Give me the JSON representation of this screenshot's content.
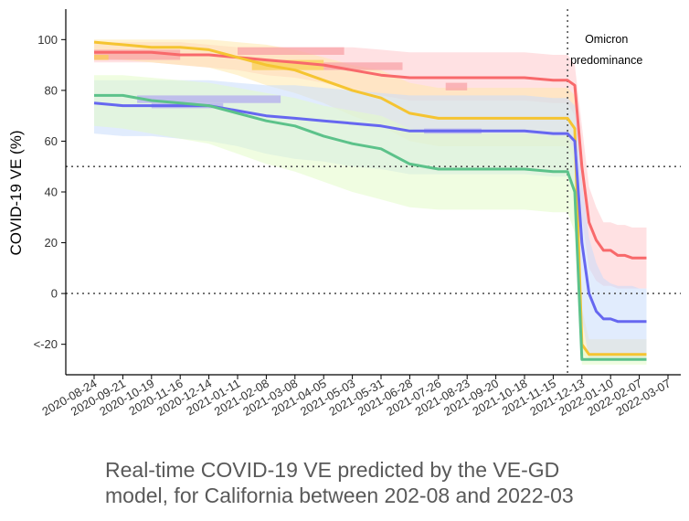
{
  "chart_data": {
    "type": "line",
    "ylabel": "COVID-19 VE (%)",
    "xlabel": "",
    "ylim": [
      -32,
      112
    ],
    "grid": false,
    "yticks": [
      {
        "value": 100,
        "label": "100"
      },
      {
        "value": 80,
        "label": "80"
      },
      {
        "value": 60,
        "label": "60"
      },
      {
        "value": 40,
        "label": "40"
      },
      {
        "value": 20,
        "label": "20"
      },
      {
        "value": 0,
        "label": "0"
      },
      {
        "value": -20,
        "label": "<-20"
      }
    ],
    "x_dates": [
      "2020-08-24",
      "2020-09-21",
      "2020-10-19",
      "2020-11-16",
      "2020-12-14",
      "2021-01-11",
      "2021-02-08",
      "2021-03-08",
      "2021-04-05",
      "2021-05-03",
      "2021-05-31",
      "2021-06-28",
      "2021-07-26",
      "2021-08-23",
      "2021-09-20",
      "2021-10-18",
      "2021-11-15",
      "2021-12-13",
      "2022-01-10",
      "2022-02-07",
      "2022-03-07"
    ],
    "reference_lines": [
      {
        "axis": "y",
        "value": 50,
        "style": "dotted"
      },
      {
        "axis": "y",
        "value": 0,
        "style": "dotted"
      },
      {
        "axis": "x",
        "value": "2021-11-29",
        "style": "dotted"
      }
    ],
    "annotation": {
      "line1": "Omicron",
      "line2": "predominance",
      "x": "2022-01-06",
      "y": 98
    },
    "series": [
      {
        "color": "#f8696b",
        "band_color": "#ffc9cc",
        "x": [
          "2020-08-24",
          "2020-09-21",
          "2020-10-19",
          "2020-11-16",
          "2020-12-14",
          "2021-01-11",
          "2021-02-08",
          "2021-03-08",
          "2021-04-05",
          "2021-05-03",
          "2021-05-31",
          "2021-06-28",
          "2021-07-26",
          "2021-08-23",
          "2021-09-20",
          "2021-10-18",
          "2021-11-15",
          "2021-11-29",
          "2021-12-06",
          "2021-12-13",
          "2021-12-20",
          "2021-12-27",
          "2022-01-03",
          "2022-01-10",
          "2022-01-17",
          "2022-01-24",
          "2022-01-31",
          "2022-02-07",
          "2022-02-14"
        ],
        "y": [
          95,
          95,
          95,
          94,
          94,
          93,
          92,
          91,
          90,
          88,
          86,
          85,
          85,
          85,
          85,
          85,
          84,
          84,
          82,
          50,
          28,
          21,
          17,
          17,
          15,
          15,
          14,
          14,
          14
        ],
        "lower": [
          91,
          91,
          91,
          90,
          89,
          88,
          86,
          85,
          83,
          80,
          78,
          76,
          76,
          76,
          76,
          76,
          75,
          75,
          70,
          30,
          10,
          5,
          3,
          3,
          2,
          2,
          2,
          2,
          2
        ],
        "upper": [
          99,
          99,
          99,
          99,
          98,
          97,
          97,
          97,
          97,
          97,
          96,
          95,
          95,
          95,
          95,
          95,
          94,
          94,
          90,
          66,
          42,
          34,
          28,
          28,
          27,
          27,
          26,
          26,
          26
        ]
      },
      {
        "color": "#f5c431",
        "band_color": "#ffe9ad",
        "x": [
          "2020-08-24",
          "2020-09-21",
          "2020-10-19",
          "2020-11-16",
          "2020-12-14",
          "2021-01-11",
          "2021-02-08",
          "2021-03-08",
          "2021-04-05",
          "2021-05-03",
          "2021-05-31",
          "2021-06-28",
          "2021-07-26",
          "2021-08-23",
          "2021-09-20",
          "2021-10-18",
          "2021-11-15",
          "2021-11-29",
          "2021-12-06",
          "2021-12-13",
          "2021-12-20",
          "2021-12-27",
          "2022-01-03",
          "2022-01-10",
          "2022-01-17",
          "2022-01-24",
          "2022-01-31",
          "2022-02-07",
          "2022-02-14"
        ],
        "y": [
          99,
          98,
          97,
          97,
          96,
          93,
          90,
          88,
          84,
          80,
          77,
          71,
          69,
          69,
          69,
          69,
          69,
          69,
          65,
          -20,
          -24,
          -24,
          -24,
          -24,
          -24,
          -24,
          -24,
          -24,
          -24
        ],
        "lower": [
          93,
          92,
          91,
          90,
          89,
          86,
          82,
          79,
          75,
          70,
          66,
          60,
          58,
          58,
          58,
          58,
          58,
          58,
          52,
          -24,
          -26,
          -26,
          -26,
          -26,
          -26,
          -26,
          -26,
          -26,
          -26
        ],
        "upper": [
          100,
          100,
          100,
          100,
          100,
          99,
          98,
          96,
          93,
          90,
          88,
          83,
          81,
          81,
          81,
          81,
          81,
          81,
          78,
          -6,
          -18,
          -18,
          -18,
          -18,
          -18,
          -18,
          -18,
          -18,
          -18
        ]
      },
      {
        "color": "#6667f0",
        "band_color": "#c9dcfb",
        "x": [
          "2020-08-24",
          "2020-09-21",
          "2020-10-19",
          "2020-11-16",
          "2020-12-14",
          "2021-01-11",
          "2021-02-08",
          "2021-03-08",
          "2021-04-05",
          "2021-05-03",
          "2021-05-31",
          "2021-06-28",
          "2021-07-26",
          "2021-08-23",
          "2021-09-20",
          "2021-10-18",
          "2021-11-15",
          "2021-11-29",
          "2021-12-06",
          "2021-12-13",
          "2021-12-20",
          "2021-12-27",
          "2022-01-03",
          "2022-01-10",
          "2022-01-17",
          "2022-01-24",
          "2022-01-31",
          "2022-02-07",
          "2022-02-14"
        ],
        "y": [
          75,
          74,
          74,
          74,
          74,
          72,
          70,
          69,
          68,
          67,
          66,
          64,
          64,
          64,
          64,
          64,
          63,
          63,
          60,
          20,
          0,
          -7,
          -10,
          -10,
          -11,
          -11,
          -11,
          -11,
          -11
        ],
        "lower": [
          63,
          62,
          62,
          61,
          60,
          58,
          55,
          53,
          52,
          50,
          49,
          47,
          47,
          47,
          47,
          47,
          46,
          46,
          40,
          -10,
          -26,
          -26,
          -26,
          -26,
          -26,
          -26,
          -26,
          -26,
          -26
        ],
        "upper": [
          84,
          84,
          84,
          84,
          84,
          83,
          82,
          82,
          81,
          80,
          79,
          78,
          78,
          78,
          78,
          78,
          77,
          77,
          74,
          44,
          22,
          12,
          6,
          4,
          3,
          3,
          3,
          2,
          2
        ]
      },
      {
        "color": "#5cc28a",
        "band_color": "#e3fcc9",
        "x": [
          "2020-08-24",
          "2020-09-21",
          "2020-10-19",
          "2020-11-16",
          "2020-12-14",
          "2021-01-11",
          "2021-02-08",
          "2021-03-08",
          "2021-04-05",
          "2021-05-03",
          "2021-05-31",
          "2021-06-28",
          "2021-07-26",
          "2021-08-23",
          "2021-09-20",
          "2021-10-18",
          "2021-11-15",
          "2021-11-29",
          "2021-12-06",
          "2021-12-13",
          "2021-12-20",
          "2021-12-27",
          "2022-01-03",
          "2022-01-10",
          "2022-01-17",
          "2022-01-24",
          "2022-01-31",
          "2022-02-07",
          "2022-02-14"
        ],
        "y": [
          78,
          78,
          76,
          75,
          74,
          71,
          68,
          66,
          62,
          59,
          57,
          51,
          49,
          49,
          49,
          49,
          48,
          48,
          40,
          -26,
          -26,
          -26,
          -26,
          -26,
          -26,
          -26,
          -26,
          -26,
          -26
        ],
        "lower": [
          66,
          65,
          63,
          61,
          59,
          55,
          51,
          48,
          44,
          40,
          37,
          34,
          33,
          33,
          33,
          33,
          32,
          32,
          24,
          -28,
          -28,
          -28,
          -28,
          -28,
          -28,
          -28,
          -28,
          -28,
          -28
        ],
        "upper": [
          86,
          86,
          85,
          84,
          83,
          81,
          79,
          77,
          74,
          72,
          70,
          65,
          63,
          63,
          63,
          63,
          62,
          62,
          56,
          -20,
          -24,
          -24,
          -24,
          -24,
          -24,
          -24,
          -24,
          -24,
          -24
        ]
      }
    ],
    "segments": [
      {
        "color": "#f8a0a4",
        "x0": "2020-08-24",
        "x1": "2020-11-16",
        "y0": 92,
        "y1": 96
      },
      {
        "color": "#f8a0a4",
        "x0": "2021-01-11",
        "x1": "2021-04-25",
        "y0": 94,
        "y1": 97
      },
      {
        "color": "#f8a0a4",
        "x0": "2021-04-05",
        "x1": "2021-06-21",
        "y0": 88,
        "y1": 91
      },
      {
        "color": "#f8a0a4",
        "x0": "2021-08-02",
        "x1": "2021-08-23",
        "y0": 80,
        "y1": 83
      },
      {
        "color": "#f9cf4f",
        "x0": "2021-01-25",
        "x1": "2021-04-05",
        "y0": 88,
        "y1": 92
      },
      {
        "color": "#f9cf4f",
        "x0": "2020-08-24",
        "x1": "2020-09-07",
        "y0": 92,
        "y1": 94
      },
      {
        "color": "#b0a8f0",
        "x0": "2020-10-05",
        "x1": "2021-02-22",
        "y0": 75,
        "y1": 78
      },
      {
        "color": "#b0a8f0",
        "x0": "2020-10-19",
        "x1": "2020-12-28",
        "y0": 73,
        "y1": 75
      },
      {
        "color": "#b0a8f0",
        "x0": "2021-07-12",
        "x1": "2021-09-06",
        "y0": 63,
        "y1": 65
      }
    ]
  },
  "caption": {
    "line1": "Real-time COVID-19 VE predicted by the VE-GD",
    "line2": "model, for California between 202-08 and 2022-03"
  }
}
